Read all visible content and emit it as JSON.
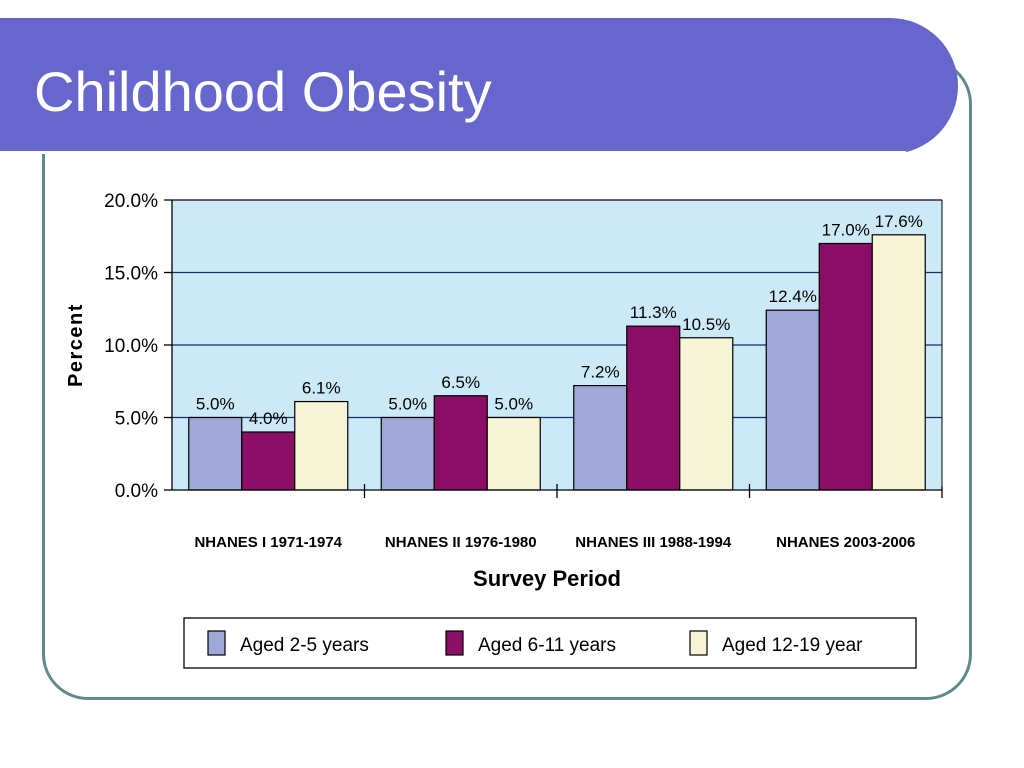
{
  "slide": {
    "title": "Childhood Obesity"
  },
  "colors": {
    "title_bar": "#6666cc",
    "frame": "#5f8a8b",
    "plot_background": "#cce9f7",
    "series": [
      "#9fa8d8",
      "#8a0d66",
      "#f6f3d6"
    ]
  },
  "chart_data": {
    "type": "bar",
    "title": "",
    "xlabel": "Survey Period",
    "ylabel": "Percent",
    "ylim": [
      0,
      20
    ],
    "yticks": [
      "0.0%",
      "5.0%",
      "10.0%",
      "15.0%",
      "20.0%"
    ],
    "grid": true,
    "legend_position": "bottom",
    "categories": [
      "NHANES I 1971-1974",
      "NHANES II 1976-1980",
      "NHANES III 1988-1994",
      "NHANES 2003-2006"
    ],
    "series": [
      {
        "name": "Aged 2-5  years",
        "values": [
          5.0,
          5.0,
          7.2,
          12.4
        ],
        "labels": [
          "5.0%",
          "5.0%",
          "7.2%",
          "12.4%"
        ]
      },
      {
        "name": "Aged 6-11 years",
        "values": [
          4.0,
          6.5,
          11.3,
          17.0
        ],
        "labels": [
          "4.0%",
          "6.5%",
          "11.3%",
          "17.0%"
        ]
      },
      {
        "name": "Aged  12-19 year",
        "values": [
          6.1,
          5.0,
          10.5,
          17.6
        ],
        "labels": [
          "6.1%",
          "5.0%",
          "10.5%",
          "17.6%"
        ]
      }
    ]
  }
}
